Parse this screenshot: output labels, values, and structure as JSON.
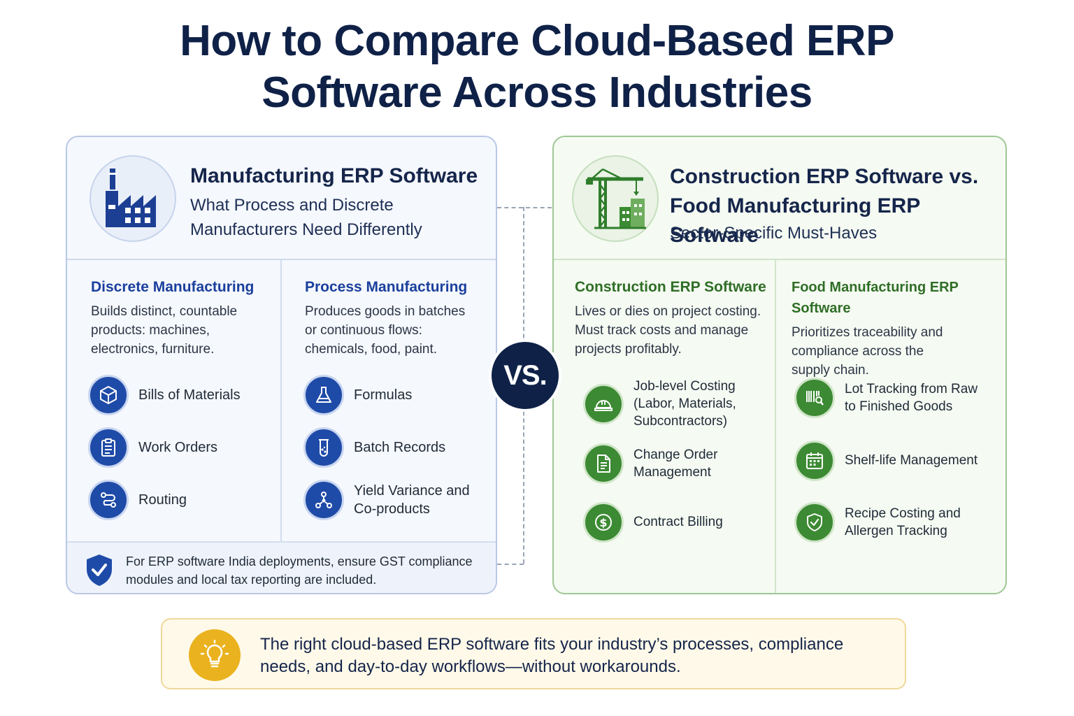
{
  "title": {
    "line1": "How to Compare Cloud-Based ERP",
    "line2": "Software Across Industries"
  },
  "left_panel": {
    "title": "Manufacturing ERP Software",
    "subtitle": "What Process and Discrete Manufacturers Need Differently",
    "icon": "factory-icon",
    "discrete": {
      "heading": "Discrete Manufacturing",
      "description": "Builds distinct, countable products: machines, electronics, furniture.",
      "features": [
        {
          "label": "Bills of Materials",
          "icon": "cube-icon"
        },
        {
          "label": "Work Orders",
          "icon": "clipboard-icon"
        },
        {
          "label": "Routing",
          "icon": "route-icon"
        }
      ]
    },
    "process": {
      "heading": "Process Manufacturing",
      "description": "Produces goods in batches or continuous flows: chemicals, food, paint.",
      "features": [
        {
          "label": "Formulas",
          "icon": "flask-icon"
        },
        {
          "label": "Batch Records",
          "icon": "beaker-icon"
        },
        {
          "label": "Yield Variance and Co-products",
          "icon": "molecule-icon"
        }
      ]
    },
    "note": "For ERP software India deployments, ensure GST compliance modules and local tax reporting are included.",
    "note_icon": "shield-check-icon"
  },
  "vs_label": "VS.",
  "right_panel": {
    "title": "Construction ERP Software vs. Food Manufacturing ERP Software",
    "subtitle": "Sector-Specific Must-Haves",
    "icon": "crane-icon",
    "construction": {
      "heading": "Construction ERP Software",
      "description": "Lives or dies on project costing. Must track costs and manage projects profitably.",
      "features": [
        {
          "label": "Job-level Costing (Labor, Materials, Subcontractors)",
          "icon": "hardhat-icon"
        },
        {
          "label": "Change Order Management",
          "icon": "document-icon"
        },
        {
          "label": "Contract Billing",
          "icon": "dollar-icon"
        }
      ]
    },
    "food": {
      "heading": "Food Manufacturing ERP Software",
      "description": "Prioritizes traceability and compliance across the supply chain.",
      "features": [
        {
          "label": "Lot Tracking from Raw to Finished Goods",
          "icon": "barcode-search-icon"
        },
        {
          "label": "Shelf-life Management",
          "icon": "calendar-icon"
        },
        {
          "label": "Recipe Costing and Allergen Tracking",
          "icon": "shield-check-icon"
        }
      ]
    }
  },
  "tip": {
    "text": "The right cloud-based ERP software fits your industry’s processes, compliance needs, and day-to-day workflows—without workarounds.",
    "icon": "lightbulb-icon"
  },
  "colors": {
    "navy": "#0f2147",
    "blue_accent": "#1f4ba8",
    "green_accent": "#3c8a33",
    "tip_yellow": "#eab21e"
  }
}
